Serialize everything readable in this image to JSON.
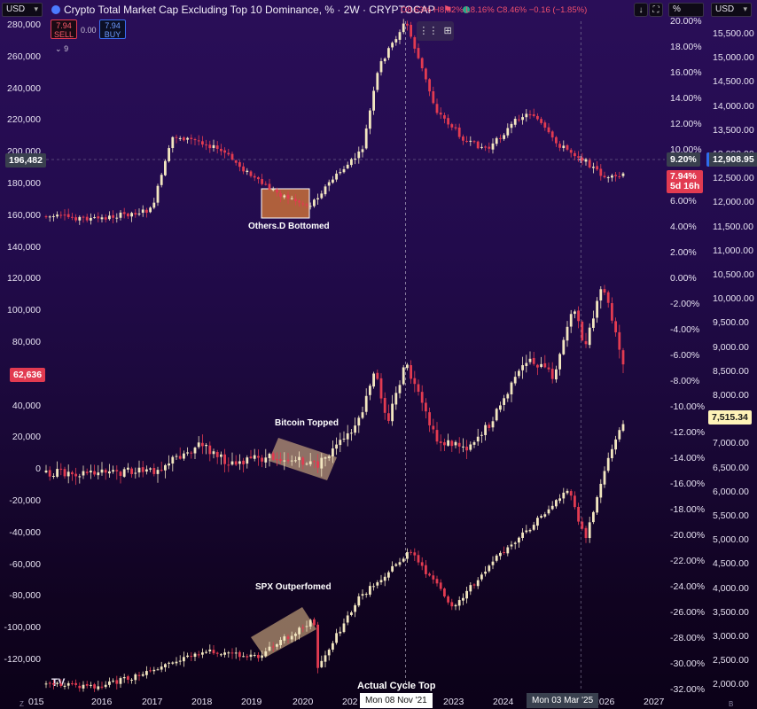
{
  "header": {
    "currency_left": "USD",
    "title": "Crypto Total Market Cap Excluding Top 10 Dominance, % · 2W · CRYPTOCAP",
    "ohlc": {
      "o": "O8.63%",
      "h": "H8.82%",
      "l": "L8.16%",
      "c": "C8.46%",
      "chg": "−0.16 (−1.85%)"
    },
    "percent_label": "%",
    "currency_right": "USD",
    "sell_price": "7.94",
    "sell_label": "SELL",
    "buy_price": "7.94",
    "buy_label": "BUY",
    "spread": "0.00",
    "indicators_count": "9",
    "download_icon": "download-icon",
    "fullscreen_icon": "fullscreen-icon",
    "grid_icon": "layout-grid-icon"
  },
  "axes": {
    "left": [
      "280,000",
      "260,000",
      "240,000",
      "220,000",
      "200,000",
      "180,000",
      "160,000",
      "140,000",
      "120,000",
      "100,000",
      "80,000",
      "60,000",
      "40,000",
      "20,000",
      "0",
      "-20,000",
      "-40,000",
      "-60,000",
      "-80,000",
      "-100,000",
      "-120,000"
    ],
    "mid": [
      "20.00%",
      "18.00%",
      "16.00%",
      "14.00%",
      "12.00%",
      "10.00%",
      "8.00%",
      "6.00%",
      "4.00%",
      "2.00%",
      "0.00%",
      "-2.00%",
      "-4.00%",
      "-6.00%",
      "-8.00%",
      "-10.00%",
      "-12.00%",
      "-14.00%",
      "-16.00%",
      "-18.00%",
      "-20.00%",
      "-22.00%",
      "-24.00%",
      "-26.00%",
      "-28.00%",
      "-30.00%",
      "-32.00%"
    ],
    "right": [
      "15,500.00",
      "15,000.00",
      "14,500.00",
      "14,000.00",
      "13,500.00",
      "13,000.00",
      "12,500.00",
      "12,000.00",
      "11,500.00",
      "11,000.00",
      "10,500.00",
      "10,000.00",
      "9,500.00",
      "9,000.00",
      "8,500.00",
      "8,000.00",
      "7,500.00",
      "7,000.00",
      "6,500.00",
      "6,000.00",
      "5,500.00",
      "5,000.00",
      "4,500.00",
      "4,000.00",
      "3,500.00",
      "3,000.00",
      "2,500.00",
      "2,000.00"
    ],
    "x": [
      "015",
      "2016",
      "2017",
      "2018",
      "2019",
      "2020",
      "202",
      "2023",
      "2024",
      "2026",
      "2027"
    ],
    "x_highlight_1": "Mon 08 Nov '21",
    "x_highlight_2": "Mon 03 Mar '25",
    "corner_left": "Z",
    "corner_right": "B"
  },
  "price_tags": {
    "crosshair_left": "196,482",
    "btc_last": "62,636",
    "crosshair_pct": "9.20%",
    "others_last": "7.94%",
    "countdown": "5d 16h",
    "crosshair_right": "12,908.95",
    "spx_last": "7,515.34"
  },
  "annotations": {
    "others": "Others.D Bottomed",
    "btc": "Bitcoin Topped",
    "spx": "SPX Outperfomed",
    "cycle": "Actual Cycle Top"
  },
  "colors": {
    "up": "#f2e6c0",
    "down": "#e23b51",
    "highlight_box": "#f0c890",
    "orange_box": "#c8703a",
    "tag_red": "#e23b51",
    "tag_yellow": "#fff3b8"
  },
  "chart_data": [
    {
      "type": "line",
      "title": "Crypto Total Market Cap Excluding Top 10 Dominance, %",
      "xlabel": "",
      "ylabel": "",
      "ylim": [
        -32,
        21
      ],
      "x": [
        "2015-01",
        "2016-01",
        "2017-01",
        "2017-06",
        "2018-01",
        "2018-06",
        "2019-01",
        "2019-06",
        "2020-01",
        "2020-06",
        "2021-01",
        "2021-05",
        "2021-11",
        "2022-06",
        "2023-01",
        "2023-06",
        "2024-01",
        "2024-04",
        "2024-09",
        "2025-03",
        "2025-09",
        "2026-01"
      ],
      "series": [
        {
          "name": "",
          "values": [
            4.7,
            4.5,
            5.2,
            11.0,
            10.5,
            9.6,
            7.5,
            6.5,
            5.5,
            7.5,
            9.8,
            16.5,
            20.0,
            13.0,
            10.5,
            10.0,
            12.5,
            12.8,
            10.5,
            9.3,
            7.6,
            7.94
          ]
        }
      ]
    },
    {
      "type": "line",
      "title": "Bitcoin",
      "xlabel": "",
      "ylabel": "",
      "ylim": [
        -125000,
        285000
      ],
      "x": [
        "2015-01",
        "2016-01",
        "2017-01",
        "2017-12",
        "2018-06",
        "2019-06",
        "2020-03",
        "2020-12",
        "2021-04",
        "2021-07",
        "2021-11",
        "2022-06",
        "2023-01",
        "2023-06",
        "2024-03",
        "2024-09",
        "2025-01",
        "2025-04",
        "2025-08",
        "2026-01"
      ],
      "series": [
        {
          "name": "",
          "values": [
            300,
            400,
            1000,
            18000,
            7000,
            10000,
            5000,
            29000,
            63000,
            33000,
            68000,
            20000,
            16500,
            30000,
            72000,
            60000,
            105000,
            78000,
            118000,
            62636
          ]
        }
      ]
    },
    {
      "type": "line",
      "title": "SPX",
      "xlabel": "",
      "ylabel": "",
      "ylim": [
        1950,
        15700
      ],
      "x": [
        "2015-01",
        "2016-01",
        "2017-01",
        "2018-01",
        "2019-01",
        "2020-02",
        "2020-03",
        "2020-12",
        "2021-12",
        "2022-10",
        "2023-07",
        "2024-03",
        "2024-12",
        "2025-04",
        "2025-09",
        "2026-01"
      ],
      "series": [
        {
          "name": "",
          "values": [
            2000,
            1950,
            2250,
            2700,
            2550,
            3350,
            2350,
            3750,
            4750,
            3600,
            4550,
            5200,
            6050,
            5000,
            6650,
            7515.34
          ]
        }
      ]
    }
  ]
}
